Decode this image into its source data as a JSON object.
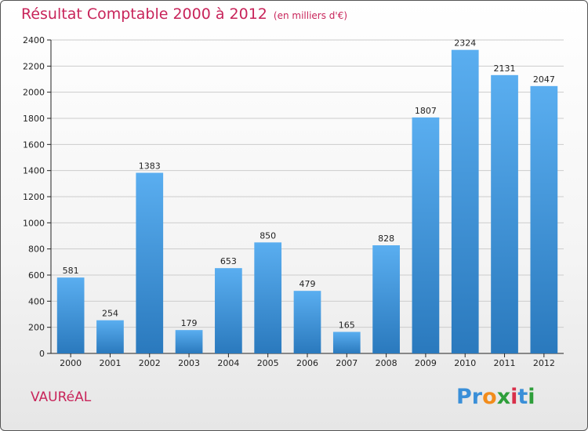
{
  "header": {
    "title": "Résultat Comptable 2000 à 2012",
    "subtitle": "(en milliers d'€)"
  },
  "footer": {
    "commune": "VAURéAL",
    "logo_letters": [
      {
        "char": "P",
        "color": "#3a8fd8"
      },
      {
        "char": "r",
        "color": "#3a8fd8"
      },
      {
        "char": "o",
        "color": "#f28c1c"
      },
      {
        "char": "x",
        "color": "#2e9e3a"
      },
      {
        "char": "i",
        "color": "#d8304a"
      },
      {
        "char": "t",
        "color": "#3a8fd8"
      },
      {
        "char": "i",
        "color": "#2e9e3a"
      }
    ]
  },
  "colors": {
    "accent": "#c8245a",
    "bar_top": "#5aaef0",
    "bar_bottom": "#2a79bd",
    "grid": "#cccccc"
  },
  "chart_data": {
    "type": "bar",
    "title": "Résultat Comptable 2000 à 2012",
    "xlabel": "",
    "ylabel": "",
    "categories": [
      "2000",
      "2001",
      "2002",
      "2003",
      "2004",
      "2005",
      "2006",
      "2007",
      "2008",
      "2009",
      "2010",
      "2011",
      "2012"
    ],
    "values": [
      581,
      254,
      1383,
      179,
      653,
      850,
      479,
      165,
      828,
      1807,
      2324,
      2131,
      2047
    ],
    "ylim": [
      0,
      2400
    ],
    "yticks": [
      0,
      200,
      400,
      600,
      800,
      1000,
      1200,
      1400,
      1600,
      1800,
      2000,
      2200,
      2400
    ],
    "grid": true
  }
}
